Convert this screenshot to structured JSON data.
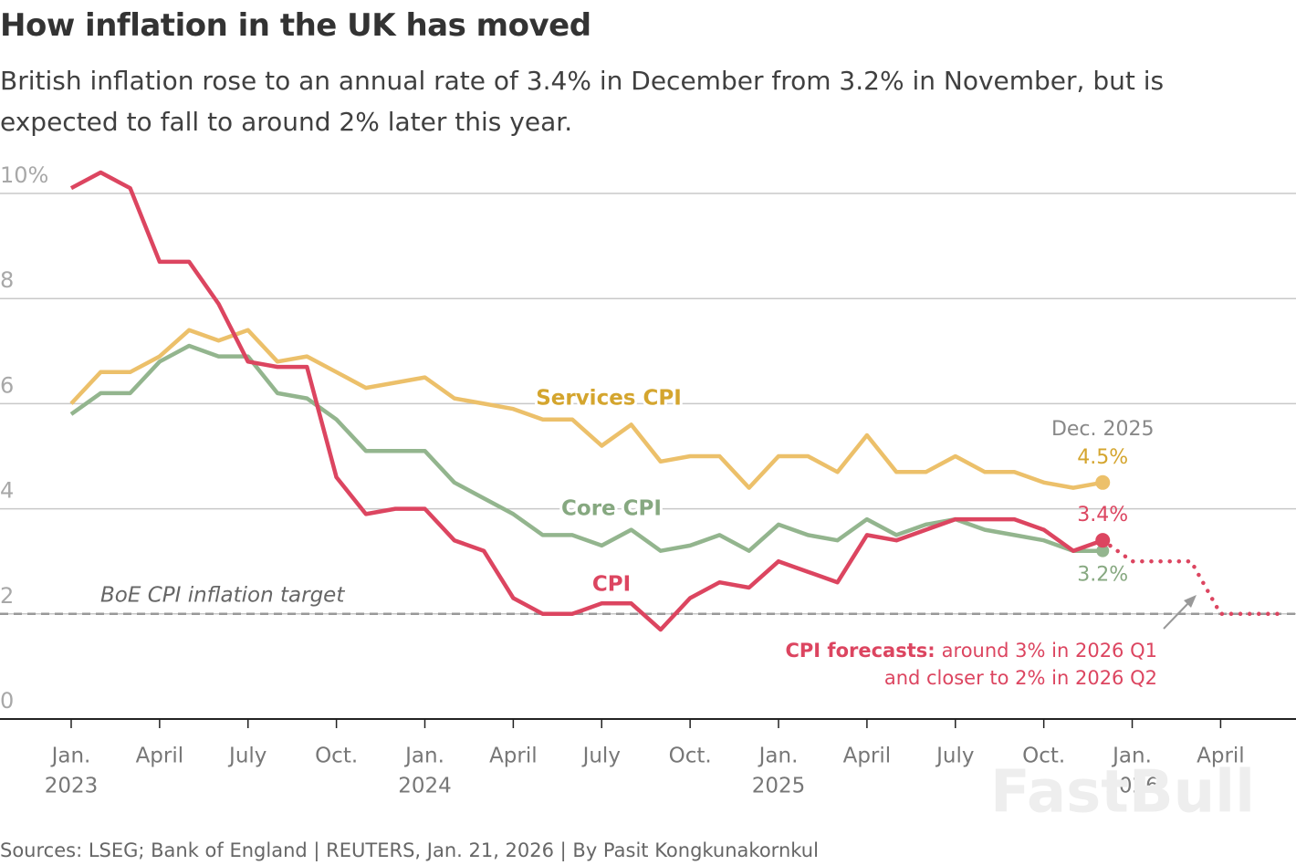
{
  "chart_data": {
    "type": "line",
    "title": "How inflation in the UK has moved",
    "subtitle": "British inflation rose to an annual rate of 3.4% in December from 3.2% in November, but is expected to fall to around 2% later this year.",
    "x": [
      "2023-01",
      "2023-02",
      "2023-03",
      "2023-04",
      "2023-05",
      "2023-06",
      "2023-07",
      "2023-08",
      "2023-09",
      "2023-10",
      "2023-11",
      "2023-12",
      "2024-01",
      "2024-02",
      "2024-03",
      "2024-04",
      "2024-05",
      "2024-06",
      "2024-07",
      "2024-08",
      "2024-09",
      "2024-10",
      "2024-11",
      "2024-12",
      "2025-01",
      "2025-02",
      "2025-03",
      "2025-04",
      "2025-05",
      "2025-06",
      "2025-07",
      "2025-08",
      "2025-09",
      "2025-10",
      "2025-11",
      "2025-12"
    ],
    "series": [
      {
        "name": "Services CPI",
        "color": "#ecc06a",
        "label_color": "#d4a52e",
        "label_side": "above",
        "values": [
          6.0,
          6.6,
          6.6,
          6.9,
          7.4,
          7.2,
          7.4,
          6.8,
          6.9,
          6.6,
          6.3,
          6.4,
          6.5,
          6.1,
          6.0,
          5.9,
          5.7,
          5.7,
          5.2,
          5.6,
          4.9,
          5.0,
          5.0,
          4.4,
          5.0,
          5.0,
          4.7,
          5.4,
          4.7,
          4.7,
          5.0,
          4.7,
          4.7,
          4.5,
          4.4,
          4.5
        ],
        "value_labels": [
          null,
          null,
          null,
          null,
          null,
          null,
          null,
          null,
          null,
          null,
          null,
          null,
          null,
          null,
          null,
          null,
          null,
          null,
          null,
          null,
          null,
          null,
          null,
          null,
          null,
          null,
          null,
          null,
          null,
          null,
          null,
          null,
          null,
          null,
          null,
          "4.5%"
        ]
      },
      {
        "name": "Core CPI",
        "color": "#93b58e",
        "label_color": "#86a880",
        "label_side": "below",
        "values": [
          5.8,
          6.2,
          6.2,
          6.8,
          7.1,
          6.9,
          6.9,
          6.2,
          6.1,
          5.7,
          5.1,
          5.1,
          5.1,
          4.5,
          4.2,
          3.9,
          3.5,
          3.5,
          3.3,
          3.6,
          3.2,
          3.3,
          3.5,
          3.2,
          3.7,
          3.5,
          3.4,
          3.8,
          3.5,
          3.7,
          3.8,
          3.6,
          3.5,
          3.4,
          3.2,
          3.2
        ],
        "value_labels": [
          null,
          null,
          null,
          null,
          null,
          null,
          null,
          null,
          null,
          null,
          null,
          null,
          null,
          null,
          null,
          null,
          null,
          null,
          null,
          null,
          null,
          null,
          null,
          null,
          null,
          null,
          null,
          null,
          null,
          null,
          null,
          null,
          null,
          null,
          null,
          "3.2%"
        ]
      },
      {
        "name": "CPI",
        "color": "#dc4560",
        "label_color": "#dc4560",
        "label_side": "above",
        "values": [
          10.1,
          10.4,
          10.1,
          8.7,
          8.7,
          7.9,
          6.8,
          6.7,
          6.7,
          4.6,
          3.9,
          4.0,
          4.0,
          3.4,
          3.2,
          2.3,
          2.0,
          2.0,
          2.2,
          2.2,
          1.7,
          2.3,
          2.6,
          2.5,
          3.0,
          2.8,
          2.6,
          3.5,
          3.4,
          3.6,
          3.8,
          3.8,
          3.8,
          3.6,
          3.2,
          3.4
        ],
        "value_labels": [
          null,
          null,
          null,
          null,
          null,
          null,
          null,
          null,
          null,
          null,
          null,
          null,
          null,
          null,
          null,
          null,
          null,
          null,
          null,
          null,
          null,
          null,
          null,
          null,
          null,
          null,
          null,
          null,
          null,
          null,
          null,
          null,
          null,
          null,
          null,
          "3.4%"
        ]
      }
    ],
    "forecast": {
      "color": "#dc4560",
      "x": [
        "2025-12",
        "2026-01",
        "2026-02",
        "2026-03",
        "2026-04",
        "2026-05",
        "2026-06"
      ],
      "values": [
        3.4,
        3.0,
        3.0,
        3.0,
        2.0,
        2.0,
        2.0
      ],
      "label_bold": "CPI forecasts:",
      "label_line1": "around 3% in 2026 Q1",
      "label_line2": "and closer to 2% in 2026 Q2"
    },
    "end_annotation": "Dec. 2025",
    "target": {
      "value": 2,
      "label": "BoE CPI inflation target"
    },
    "ylim": [
      0,
      10
    ],
    "yticks": [
      0,
      2,
      4,
      6,
      8,
      {
        "value": 10,
        "label": "10%"
      }
    ],
    "xlim": [
      "2022-11",
      "2026-06"
    ],
    "xticks": [
      {
        "value": "2023-01",
        "label": "Jan.",
        "year": "2023"
      },
      {
        "value": "2023-04",
        "label": "April"
      },
      {
        "value": "2023-07",
        "label": "July"
      },
      {
        "value": "2023-10",
        "label": "Oct."
      },
      {
        "value": "2024-01",
        "label": "Jan.",
        "year": "2024"
      },
      {
        "value": "2024-04",
        "label": "April"
      },
      {
        "value": "2024-07",
        "label": "July"
      },
      {
        "value": "2024-10",
        "label": "Oct."
      },
      {
        "value": "2025-01",
        "label": "Jan.",
        "year": "2025"
      },
      {
        "value": "2025-04",
        "label": "April"
      },
      {
        "value": "2025-07",
        "label": "July"
      },
      {
        "value": "2025-10",
        "label": "Oct."
      },
      {
        "value": "2026-01",
        "label": "Jan.",
        "year": "2026"
      },
      {
        "value": "2026-04",
        "label": "April"
      }
    ],
    "grid": true,
    "source": "Sources: LSEG; Bank of England | REUTERS, Jan. 21, 2026 | By Pasit Kongkunakornkul",
    "watermark": "FastBull"
  }
}
